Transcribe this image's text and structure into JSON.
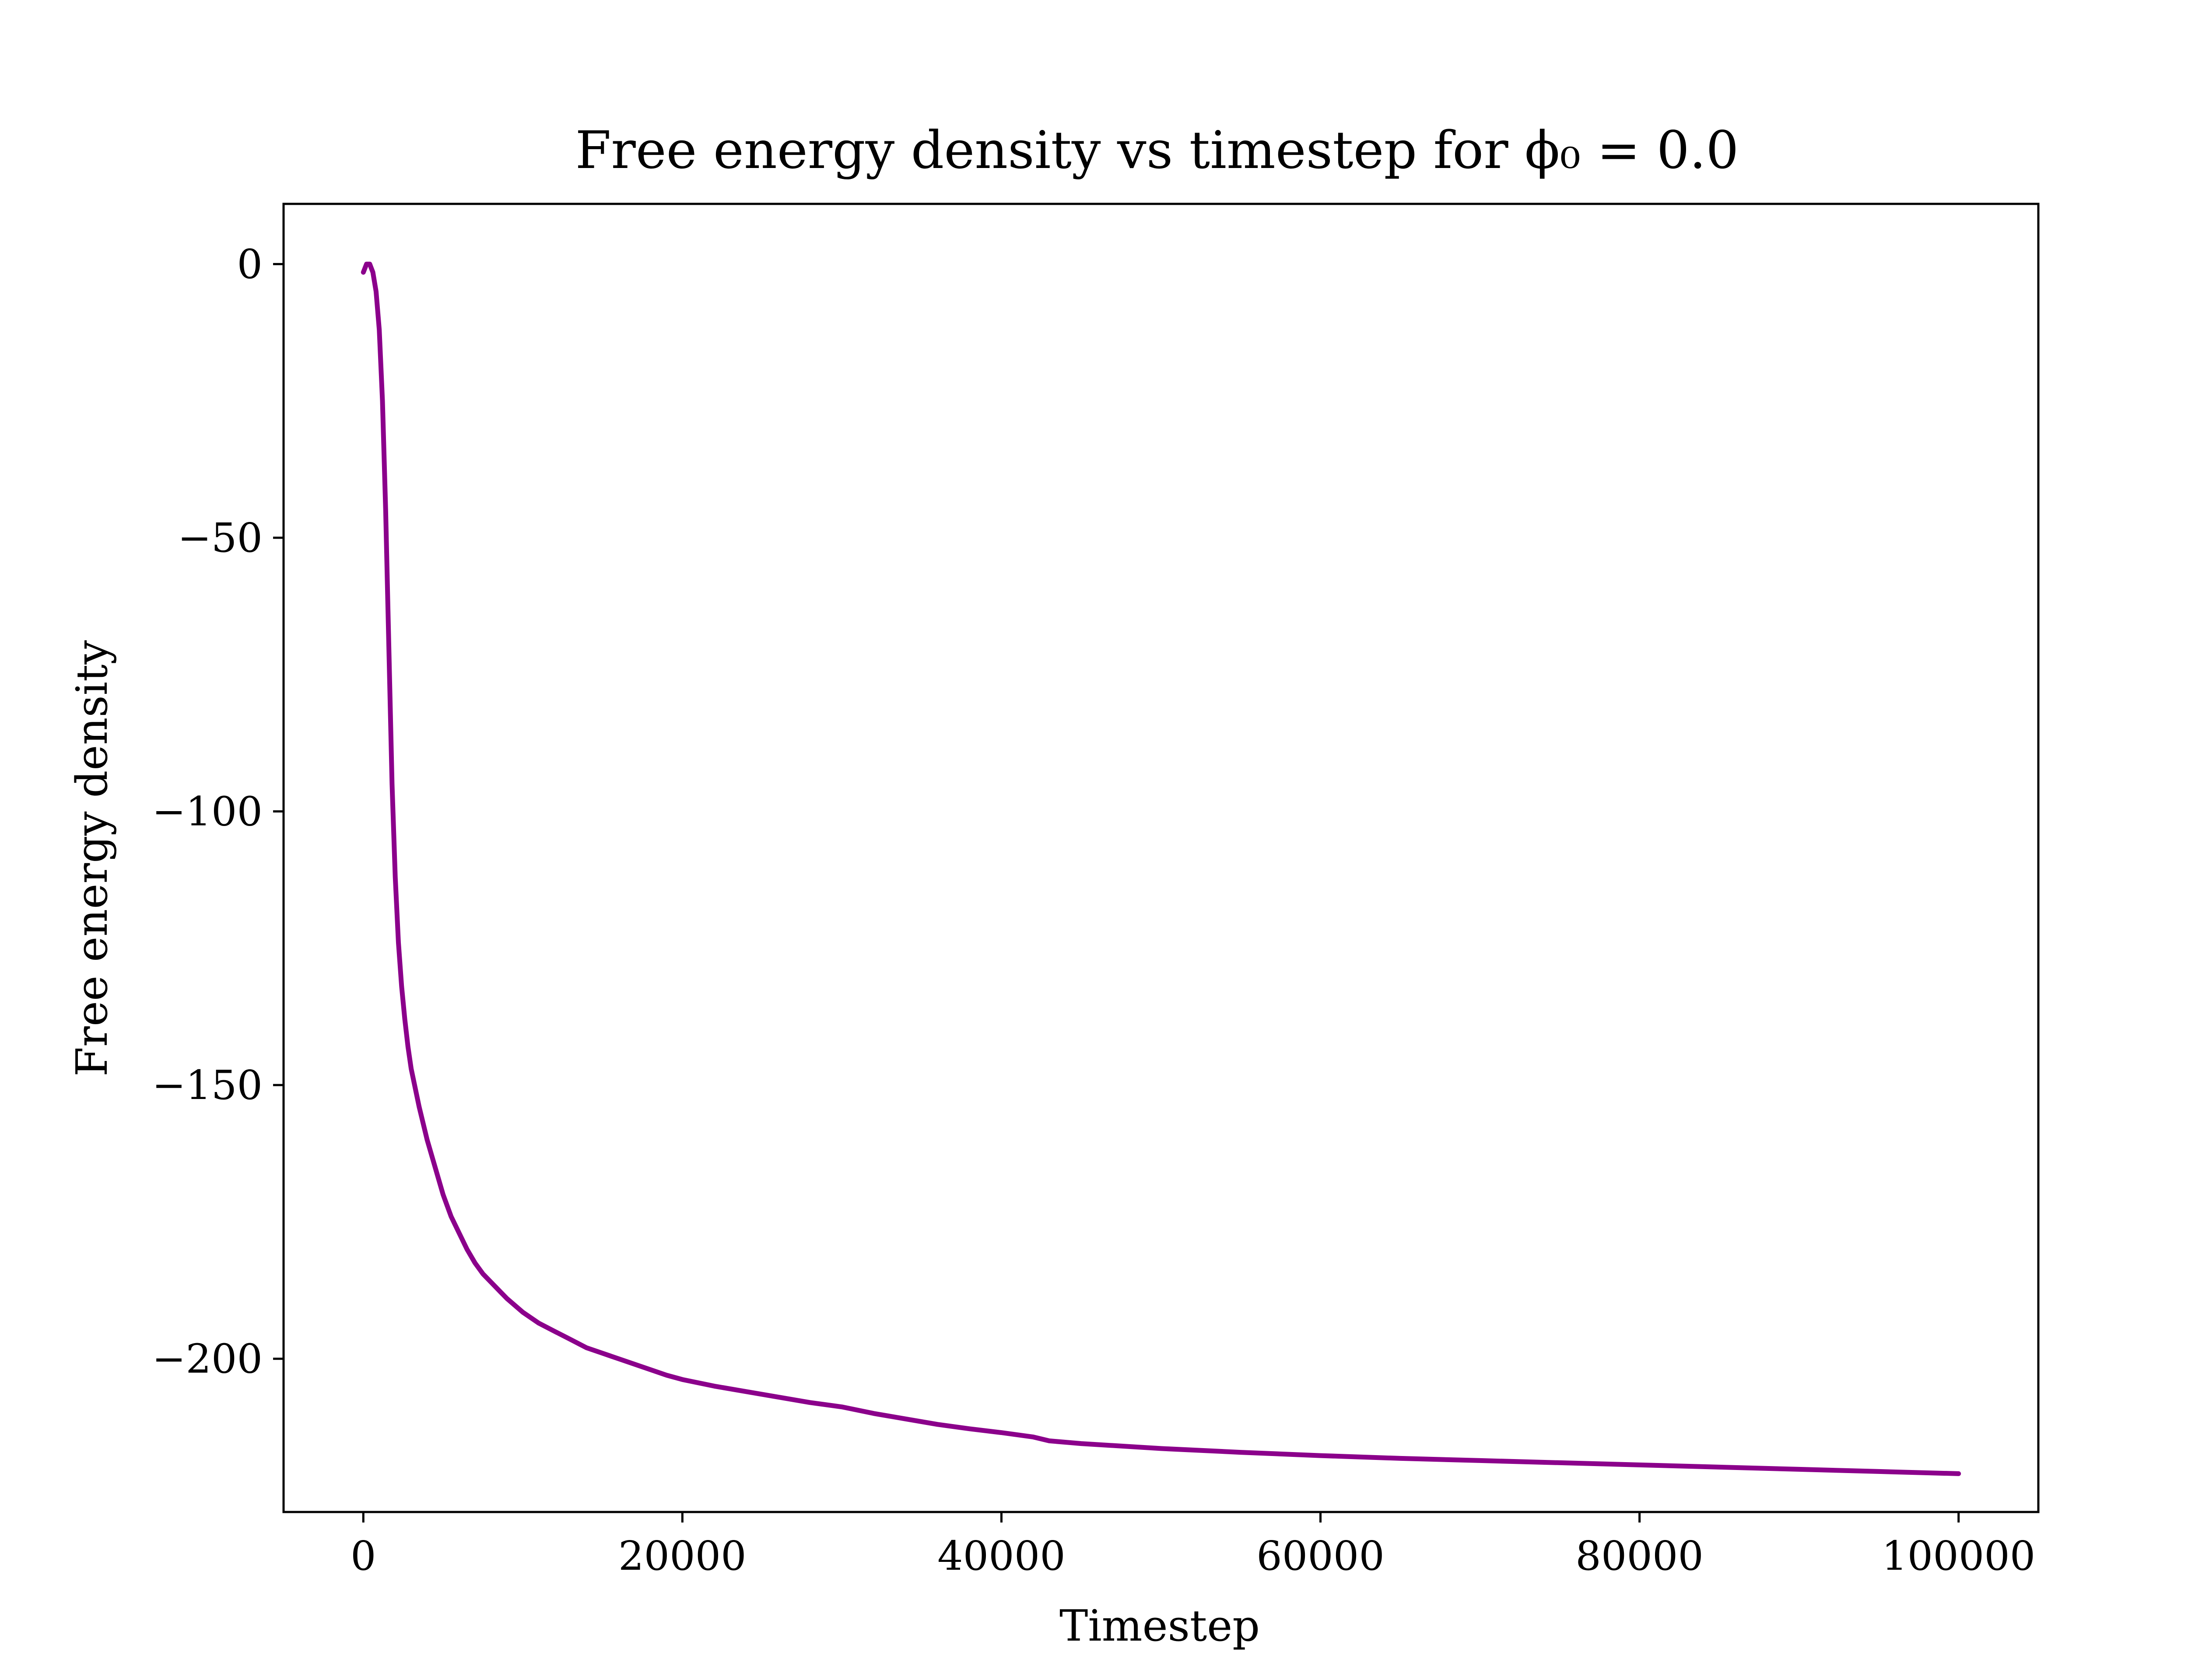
{
  "chart_data": {
    "type": "line",
    "title": "Free energy density vs timestep for ϕ₀ = 0.0",
    "xlabel": "Timestep",
    "ylabel": "Free energy density",
    "xlim": [
      -5000,
      105000
    ],
    "ylim": [
      -228,
      11
    ],
    "xticks": [
      0,
      20000,
      40000,
      60000,
      80000,
      100000
    ],
    "xtick_labels": [
      "0",
      "20000",
      "40000",
      "60000",
      "80000",
      "100000"
    ],
    "yticks": [
      0,
      -50,
      -100,
      -150,
      -200
    ],
    "ytick_labels": [
      "0",
      "−50",
      "−100",
      "−150",
      "−200"
    ],
    "grid": false,
    "legend": "none",
    "colors": {
      "line": "#8b008b",
      "axes": "#000000",
      "background": "#ffffff"
    },
    "series": [
      {
        "x": [
          0,
          200,
          400,
          600,
          800,
          1000,
          1200,
          1400,
          1600,
          1800,
          2000,
          2200,
          2400,
          2600,
          2800,
          3000,
          3500,
          4000,
          4500,
          5000,
          5500,
          6000,
          6500,
          7000,
          7500,
          8000,
          9000,
          10000,
          11000,
          12000,
          13000,
          14000,
          15000,
          16000,
          17000,
          18000,
          19000,
          20000,
          22000,
          24000,
          26000,
          28000,
          30000,
          32000,
          34000,
          36000,
          38000,
          40000,
          42000,
          43000,
          45000,
          50000,
          55000,
          60000,
          65000,
          70000,
          75000,
          80000,
          85000,
          90000,
          95000,
          100000
        ],
        "y": [
          -1.5,
          0,
          0,
          -1.5,
          -5,
          -12,
          -25,
          -45,
          -70,
          -95,
          -112,
          -124,
          -132,
          -138,
          -143,
          -147,
          -154,
          -160,
          -165,
          -170,
          -174,
          -177,
          -180,
          -182.5,
          -184.5,
          -186,
          -189,
          -191.5,
          -193.5,
          -195,
          -196.5,
          -198,
          -199,
          -200,
          -201,
          -202,
          -203,
          -203.8,
          -205,
          -206,
          -207,
          -208,
          -208.8,
          -210,
          -211,
          -212,
          -212.8,
          -213.5,
          -214.3,
          -215,
          -215.5,
          -216.4,
          -217.1,
          -217.7,
          -218.2,
          -218.6,
          -219,
          -219.4,
          -219.8,
          -220.2,
          -220.6,
          -221
        ]
      }
    ]
  }
}
